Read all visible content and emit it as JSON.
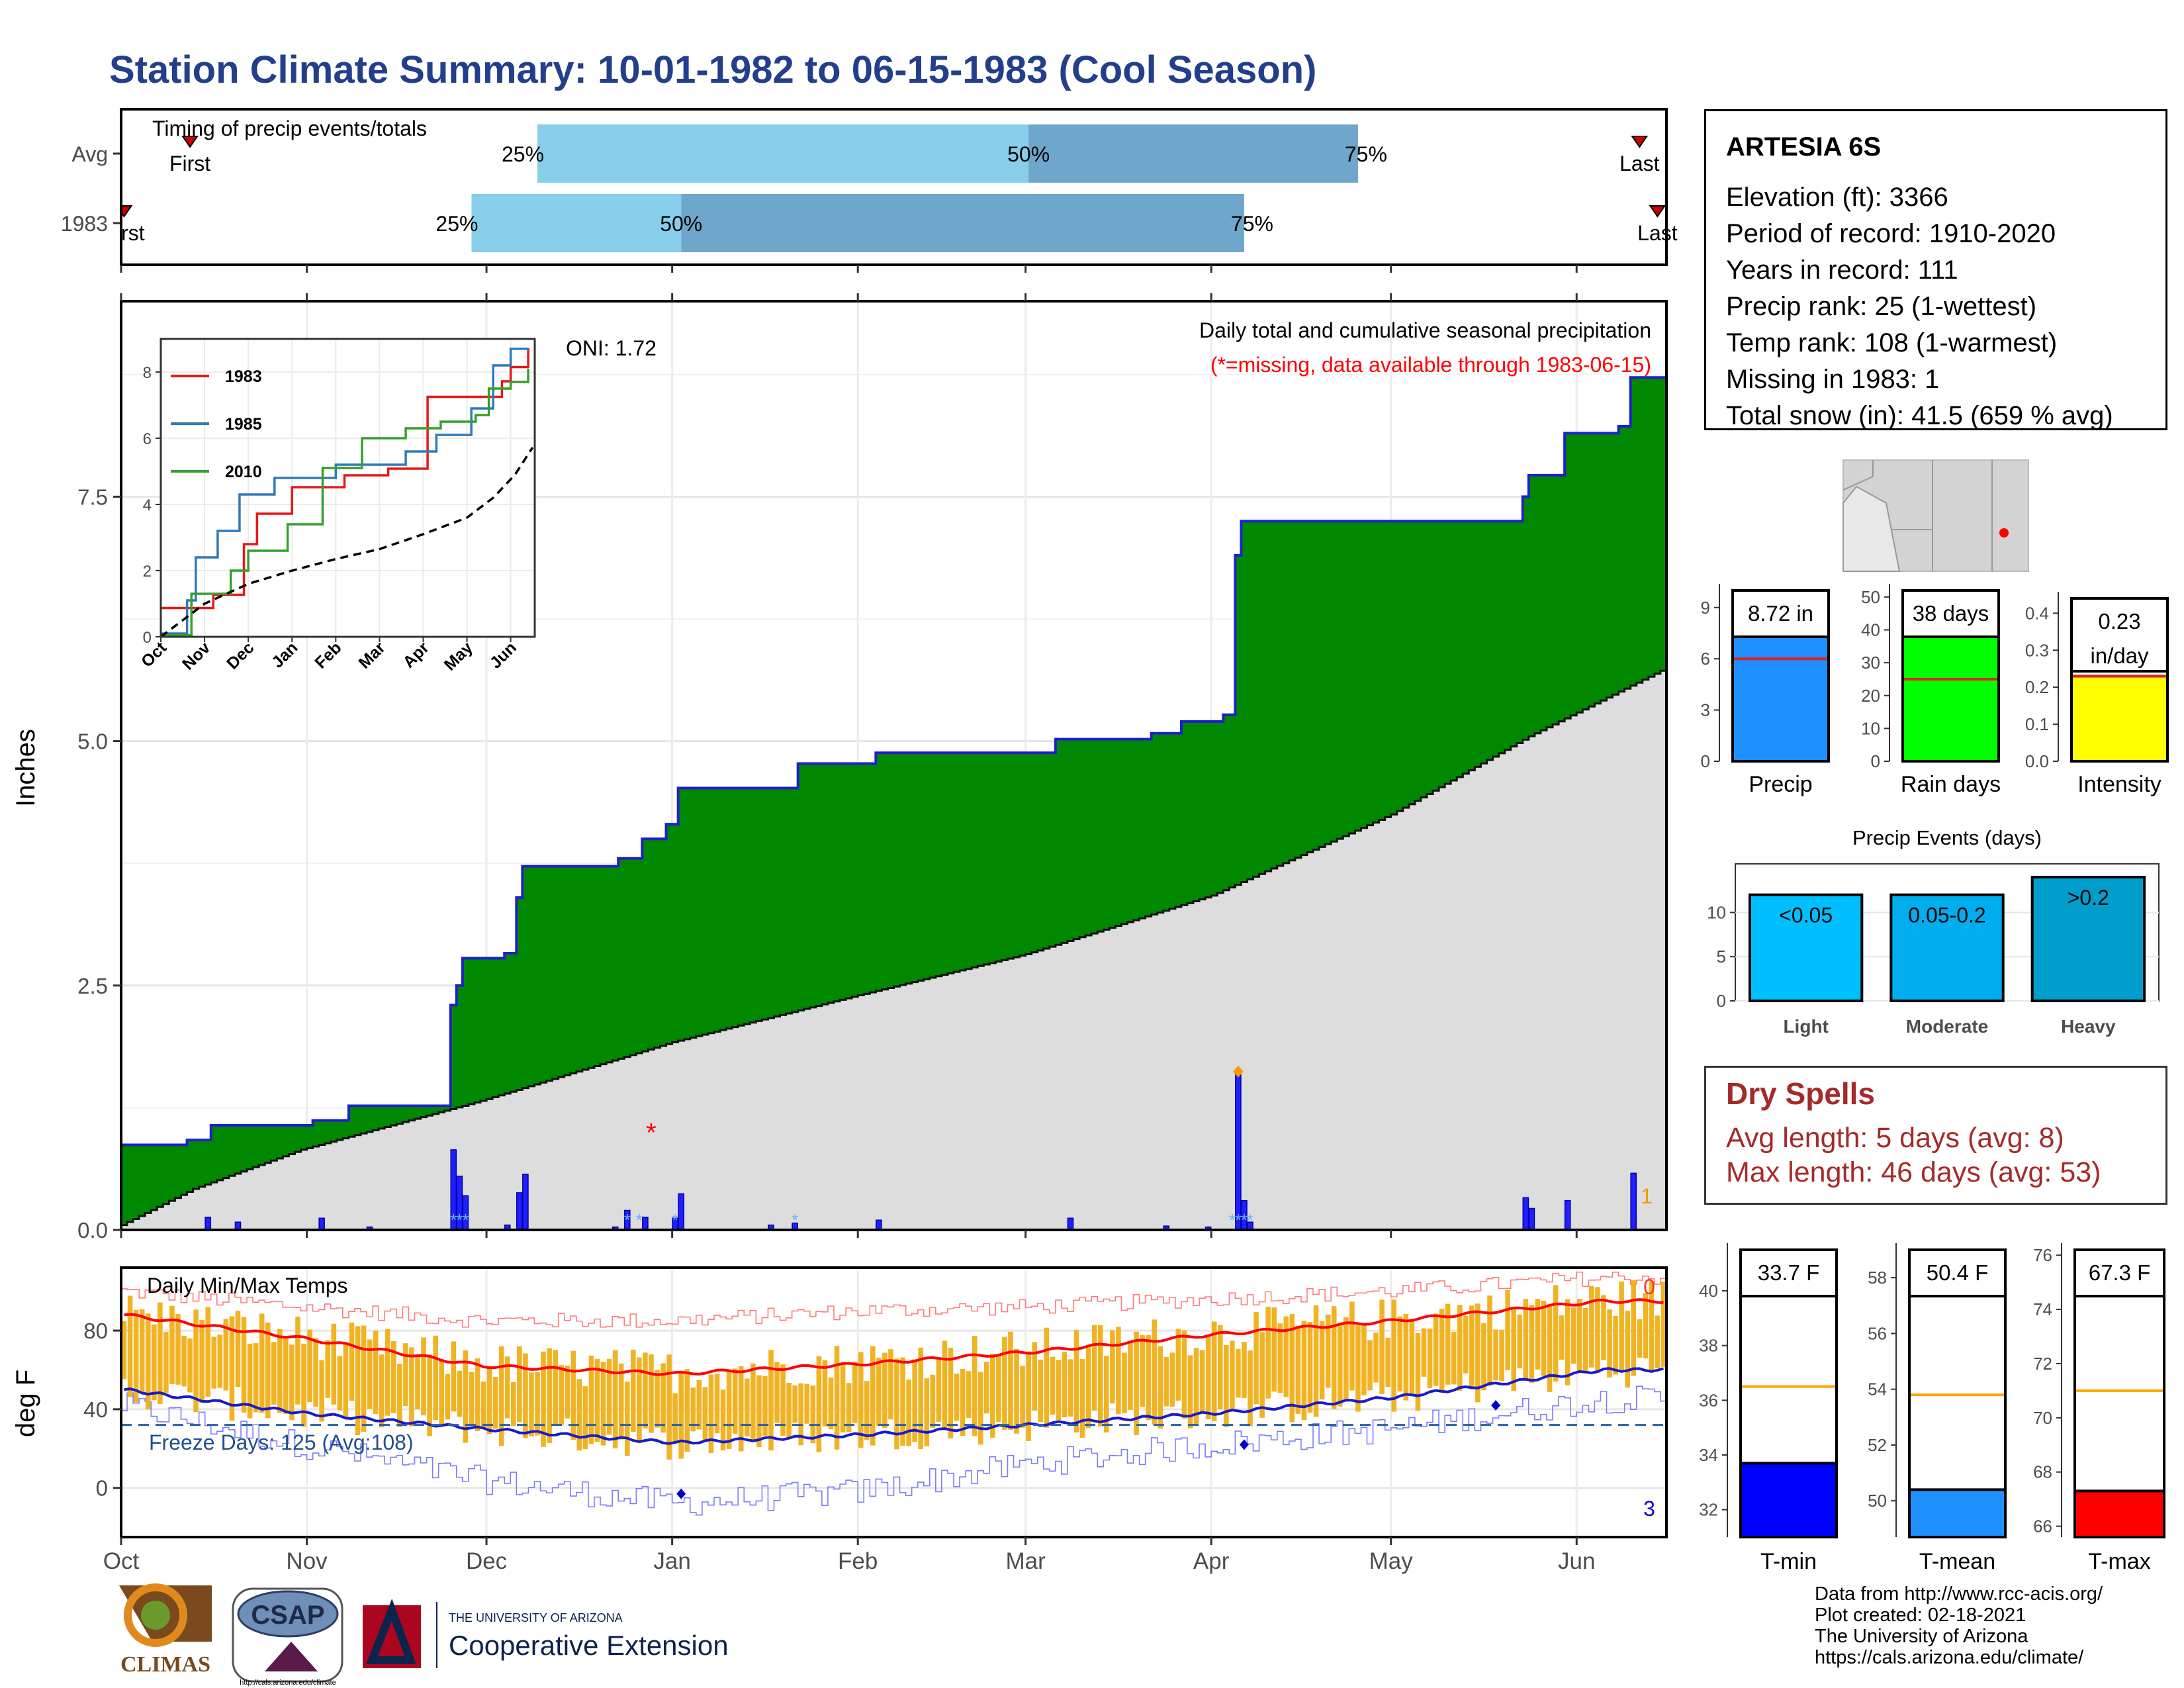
{
  "page_title": "Station Climate Summary: 10-01-1982 to 06-15-1983 (Cool Season)",
  "colors": {
    "title": "#233f8b",
    "green": "#008800",
    "brown": "#8b5a12",
    "climo": "#dddddd",
    "blue_line": "#1f20cc",
    "bar_q1": "#87ceeb",
    "bar_q2": "#6fa6cc",
    "temp_bar": "#f0b323",
    "red": "#e51919",
    "dry_red": "#a52a2a"
  },
  "chart_data": [
    {
      "type": "bar",
      "name": "timing",
      "title": "Timing of precip events/totals",
      "rows": [
        {
          "label": "Avg",
          "first_label": "First",
          "last_label": "Last",
          "first": "1982-10-12",
          "q25": "1982-12-09",
          "q50": "1983-03-01",
          "q75": "1983-04-25",
          "last": "1983-06-11"
        },
        {
          "label": "1983",
          "first_label": "First",
          "last_label": "Last",
          "first": "1982-10-01",
          "q25": "1982-11-28",
          "q50": "1983-01-02",
          "q75": "1983-04-06",
          "last": "1983-06-14"
        }
      ],
      "q_labels": [
        "25%",
        "50%",
        "75%"
      ]
    },
    {
      "type": "area",
      "name": "precip",
      "subtitle": "Daily total and cumulative seasonal precipitation",
      "note": "(*=missing, data available through 1983-06-15)",
      "oni": "ONI: 1.72",
      "missing_count_label": "1",
      "ylabel": "Inches",
      "ylim": [
        0,
        9.5
      ],
      "yticks": [
        0,
        2.5,
        5,
        7.5
      ],
      "ytick_labels": [
        "0.0",
        "2.5",
        "5.0",
        "7.5"
      ],
      "cumulative_1983": [
        [
          "1982-10-01",
          0.87
        ],
        [
          "1982-10-12",
          0.92
        ],
        [
          "1982-10-16",
          1.07
        ],
        [
          "1982-11-02",
          1.12
        ],
        [
          "1982-11-08",
          1.27
        ],
        [
          "1982-11-25",
          1.28
        ],
        [
          "1982-11-25",
          2.3
        ],
        [
          "1982-11-26",
          2.5
        ],
        [
          "1982-11-27",
          2.78
        ],
        [
          "1982-12-04",
          2.83
        ],
        [
          "1982-12-06",
          3.4
        ],
        [
          "1982-12-07",
          3.72
        ],
        [
          "1982-12-23",
          3.8
        ],
        [
          "1982-12-27",
          4.0
        ],
        [
          "1982-12-31",
          4.15
        ],
        [
          "1983-01-02",
          4.52
        ],
        [
          "1983-01-22",
          4.77
        ],
        [
          "1983-02-04",
          4.88
        ],
        [
          "1983-03-06",
          5.02
        ],
        [
          "1983-03-22",
          5.08
        ],
        [
          "1983-03-27",
          5.2
        ],
        [
          "1983-04-03",
          5.27
        ],
        [
          "1983-04-05",
          6.9
        ],
        [
          "1983-04-06",
          7.25
        ],
        [
          "1983-05-23",
          7.5
        ],
        [
          "1983-05-24",
          7.72
        ],
        [
          "1983-05-30",
          8.15
        ],
        [
          "1983-06-08",
          8.22
        ],
        [
          "1983-06-10",
          8.72
        ]
      ],
      "climatology_end": 5.72,
      "daily_bars": [
        [
          "1982-10-15",
          0.13
        ],
        [
          "1982-10-20",
          0.08
        ],
        [
          "1982-11-03",
          0.12
        ],
        [
          "1982-11-11",
          0.03
        ],
        [
          "1982-11-25",
          0.82
        ],
        [
          "1982-11-26",
          0.55
        ],
        [
          "1982-11-27",
          0.35
        ],
        [
          "1982-12-04",
          0.05
        ],
        [
          "1982-12-06",
          0.38
        ],
        [
          "1982-12-07",
          0.57
        ],
        [
          "1982-12-22",
          0.03
        ],
        [
          "1982-12-24",
          0.2
        ],
        [
          "1982-12-27",
          0.13
        ],
        [
          "1983-01-01",
          0.12
        ],
        [
          "1983-01-02",
          0.37
        ],
        [
          "1983-01-17",
          0.05
        ],
        [
          "1983-01-21",
          0.07
        ],
        [
          "1983-02-04",
          0.1
        ],
        [
          "1983-03-08",
          0.12
        ],
        [
          "1983-03-24",
          0.04
        ],
        [
          "1983-03-31",
          0.03
        ],
        [
          "1983-04-05",
          1.62
        ],
        [
          "1983-04-06",
          0.3
        ],
        [
          "1983-04-07",
          0.08
        ],
        [
          "1983-05-23",
          0.33
        ],
        [
          "1983-05-24",
          0.22
        ],
        [
          "1983-05-30",
          0.3
        ],
        [
          "1983-06-10",
          0.58
        ]
      ],
      "missing_marker": {
        "date": "1982-12-28",
        "value": 1.0,
        "label": "*"
      },
      "max_marker": {
        "date": "1983-04-05",
        "value": 1.62
      }
    },
    {
      "type": "line",
      "name": "inset-cumulative",
      "x_tick_labels": [
        "Oct",
        "Nov",
        "Dec",
        "Jan",
        "Feb",
        "Mar",
        "Apr",
        "May",
        "Jun"
      ],
      "yticks": [
        0,
        2,
        4,
        6,
        8
      ],
      "ylim": [
        0,
        9
      ],
      "series": [
        {
          "name": "1983",
          "color": "#e51919",
          "points": [
            [
              0,
              0.87
            ],
            [
              1.2,
              1.27
            ],
            [
              1.9,
              2.8
            ],
            [
              2.2,
              3.72
            ],
            [
              3.0,
              4.52
            ],
            [
              4.2,
              4.88
            ],
            [
              5.2,
              5.08
            ],
            [
              6.1,
              7.25
            ],
            [
              7.8,
              7.72
            ],
            [
              8.0,
              8.15
            ],
            [
              8.4,
              8.72
            ]
          ]
        },
        {
          "name": "1985",
          "color": "#2f7ab8",
          "points": [
            [
              0,
              0.1
            ],
            [
              0.6,
              1.1
            ],
            [
              0.8,
              2.4
            ],
            [
              1.3,
              3.2
            ],
            [
              1.8,
              4.3
            ],
            [
              2.6,
              4.8
            ],
            [
              4.0,
              5.2
            ],
            [
              5.6,
              5.6
            ],
            [
              6.3,
              6.1
            ],
            [
              7.1,
              6.9
            ],
            [
              7.6,
              8.2
            ],
            [
              8.0,
              8.7
            ],
            [
              8.4,
              8.7
            ]
          ]
        },
        {
          "name": "2010",
          "color": "#33a02c",
          "points": [
            [
              0,
              0.05
            ],
            [
              0.7,
              1.3
            ],
            [
              1.6,
              2.0
            ],
            [
              2.0,
              2.6
            ],
            [
              2.9,
              3.4
            ],
            [
              3.7,
              5.1
            ],
            [
              4.6,
              6.0
            ],
            [
              5.6,
              6.3
            ],
            [
              6.4,
              6.5
            ],
            [
              7.2,
              6.7
            ],
            [
              7.5,
              7.5
            ],
            [
              8.0,
              7.7
            ],
            [
              8.4,
              8.1
            ]
          ]
        },
        {
          "name": "Average",
          "color": "#000000",
          "dashed": true,
          "points": [
            [
              0,
              0
            ],
            [
              1,
              1.0
            ],
            [
              2,
              1.6
            ],
            [
              3,
              2.0
            ],
            [
              4,
              2.35
            ],
            [
              5,
              2.65
            ],
            [
              6,
              3.1
            ],
            [
              7,
              3.6
            ],
            [
              7.6,
              4.2
            ],
            [
              8.1,
              4.9
            ],
            [
              8.5,
              5.72
            ]
          ]
        }
      ]
    },
    {
      "type": "bar",
      "name": "temps",
      "title": "Daily Min/Max Temps",
      "ylabel": "deg F",
      "ylim": [
        -25,
        112
      ],
      "yticks": [
        0,
        40,
        80
      ],
      "freeze_line": 32,
      "freeze_label": "Freeze Days: 125 (Avg:108)",
      "corner_label_high": "0",
      "corner_label_low": "3",
      "avg_max": [
        [
          0,
          88
        ],
        [
          30,
          76
        ],
        [
          60,
          62
        ],
        [
          92,
          58
        ],
        [
          123,
          63
        ],
        [
          151,
          69
        ],
        [
          182,
          78
        ],
        [
          212,
          85
        ],
        [
          247,
          95
        ]
      ],
      "avg_min": [
        [
          0,
          50
        ],
        [
          30,
          38
        ],
        [
          60,
          30
        ],
        [
          92,
          23
        ],
        [
          123,
          27
        ],
        [
          151,
          32
        ],
        [
          182,
          38
        ],
        [
          212,
          46
        ],
        [
          247,
          60
        ]
      ],
      "record_max": [
        [
          0,
          100
        ],
        [
          30,
          92
        ],
        [
          60,
          85
        ],
        [
          92,
          85
        ],
        [
          123,
          90
        ],
        [
          151,
          92
        ],
        [
          182,
          96
        ],
        [
          212,
          100
        ],
        [
          247,
          107
        ]
      ],
      "record_min": [
        [
          0,
          42
        ],
        [
          30,
          22
        ],
        [
          60,
          4
        ],
        [
          92,
          -8
        ],
        [
          123,
          -2
        ],
        [
          151,
          12
        ],
        [
          182,
          22
        ],
        [
          212,
          30
        ],
        [
          247,
          45
        ]
      ]
    },
    {
      "type": "bar",
      "name": "summary-precip",
      "title": "Precip",
      "value": 8.72,
      "value_label": "8.72 in",
      "avg": 6,
      "ylim": [
        0,
        10
      ],
      "yticks": [
        0,
        3,
        6,
        9
      ],
      "color": "#1e90ff"
    },
    {
      "type": "bar",
      "name": "summary-raindays",
      "title": "Rain days",
      "value": 38,
      "value_label": "38 days",
      "avg": 25,
      "ylim": [
        0,
        52
      ],
      "yticks": [
        0,
        10,
        20,
        30,
        40,
        50
      ],
      "color": "#00ff00"
    },
    {
      "type": "bar",
      "name": "summary-intensity",
      "title": "Intensity",
      "value": 0.23,
      "value_label": "0.23",
      "value_label2": "in/day",
      "avg": 0.23,
      "ylim": [
        0,
        0.44
      ],
      "yticks": [
        0.0,
        0.1,
        0.2,
        0.3,
        0.4
      ],
      "ytick_labels": [
        "0.0",
        "0.1",
        "0.2",
        "0.3",
        "0.4"
      ],
      "color": "#ffff00"
    },
    {
      "type": "bar",
      "name": "precip-events",
      "title": "Precip Events (days)",
      "categories": [
        "Light",
        "Moderate",
        "Heavy"
      ],
      "bar_labels": [
        "<0.05",
        "0.05-0.2",
        ">0.2"
      ],
      "values": [
        12,
        12,
        14
      ],
      "ylim": [
        0,
        15.5
      ],
      "yticks": [
        0,
        5,
        10
      ],
      "colors": [
        "#00bfff",
        "#00aeef",
        "#009ecc"
      ]
    },
    {
      "type": "bar",
      "name": "summary-tmin",
      "title": "T-min",
      "value": 33.7,
      "value_label": "33.7 F",
      "avg": 36.5,
      "ylim": [
        31,
        41.5
      ],
      "yticks": [
        32,
        34,
        36,
        38,
        40
      ],
      "color": "#0000ff"
    },
    {
      "type": "bar",
      "name": "summary-tmean",
      "title": "T-mean",
      "value": 50.4,
      "value_label": "50.4 F",
      "avg": 53.8,
      "ylim": [
        48.7,
        59
      ],
      "yticks": [
        50,
        52,
        54,
        56,
        58
      ],
      "color": "#1e90ff"
    },
    {
      "type": "bar",
      "name": "summary-tmax",
      "title": "T-max",
      "value": 67.3,
      "value_label": "67.3 F",
      "avg": 71,
      "ylim": [
        65.6,
        76.2
      ],
      "yticks": [
        66,
        68,
        70,
        72,
        74,
        76
      ],
      "color": "#ff0000"
    }
  ],
  "x_axis": {
    "start": "1982-10-01",
    "end": "1983-06-15",
    "month_labels": [
      "Oct",
      "Nov",
      "Dec",
      "Jan",
      "Feb",
      "Mar",
      "Apr",
      "May",
      "Jun"
    ]
  },
  "station": {
    "name": "ARTESIA 6S",
    "lines": [
      "Elevation (ft): 3366",
      "Period of record: 1910-2020",
      "Years in record: 111",
      "Precip rank: 25 (1-wettest)",
      "Temp rank: 108 (1-warmest)",
      "Missing in 1983: 1",
      "Total snow (in): 41.5 (659 % avg)"
    ]
  },
  "dry_spells": {
    "title": "Dry Spells",
    "avg": "Avg length: 5 days (avg: 8)",
    "max": "Max length: 46 days (avg: 53)"
  },
  "footer": {
    "credits": [
      "Data from http://www.rcc-acis.org/",
      "Plot created: 02-18-2021",
      "The University of Arizona",
      "https://cals.arizona.edu/climate/"
    ],
    "climas": "CLIMAS",
    "csap": "CSAP",
    "csap_url": "http://cals.arizona.edu/climate",
    "ua_small": "THE UNIVERSITY OF ARIZONA",
    "ua_big": "Cooperative Extension"
  }
}
